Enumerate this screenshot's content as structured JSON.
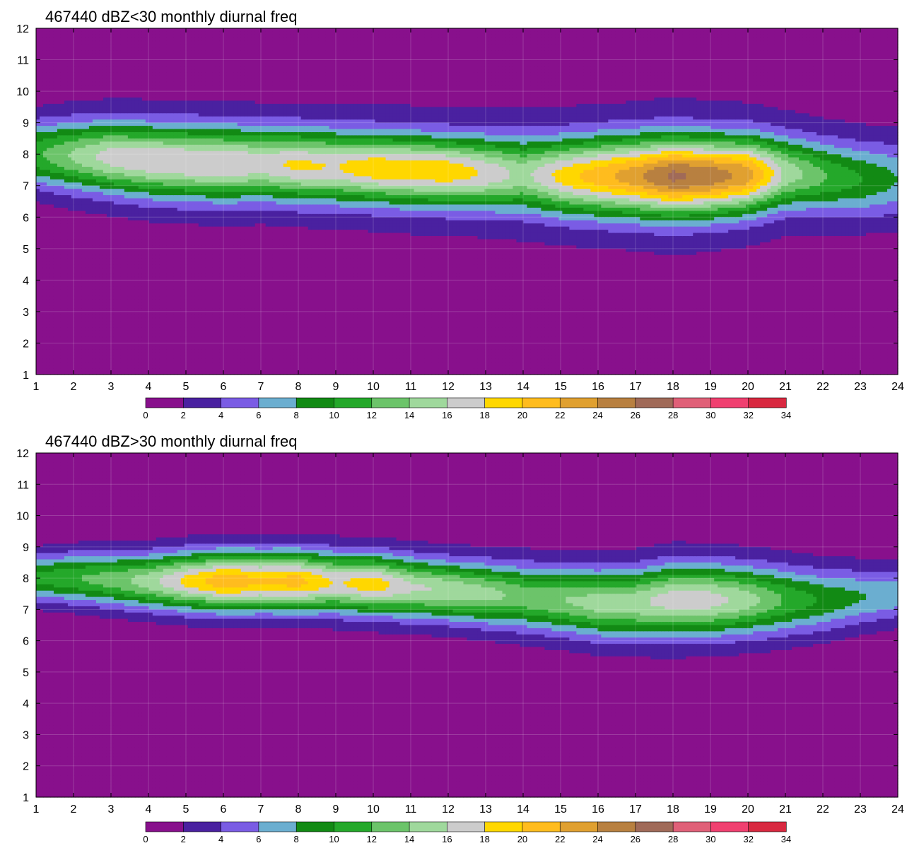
{
  "chart_data": [
    {
      "type": "heatmap",
      "title": "467440 dBZ<30 monthly diurnal freq",
      "xlabel": "",
      "ylabel": "",
      "xlim": [
        1,
        24
      ],
      "ylim": [
        1,
        12
      ],
      "x_ticks": [
        "1",
        "2",
        "3",
        "4",
        "5",
        "6",
        "7",
        "8",
        "9",
        "10",
        "11",
        "12",
        "13",
        "14",
        "15",
        "16",
        "17",
        "18",
        "19",
        "20",
        "21",
        "22",
        "23",
        "24"
      ],
      "y_ticks": [
        "1",
        "2",
        "3",
        "4",
        "5",
        "6",
        "7",
        "8",
        "9",
        "10",
        "11",
        "12"
      ],
      "colorbar": {
        "levels": [
          "0",
          "2",
          "4",
          "6",
          "8",
          "10",
          "12",
          "14",
          "16",
          "18",
          "20",
          "22",
          "24",
          "26",
          "28",
          "30",
          "32",
          "34"
        ],
        "colors": [
          "#88108c",
          "#4a21a0",
          "#7a5ce4",
          "#6baed0",
          "#128a14",
          "#24a82a",
          "#6cc46a",
          "#9fd89c",
          "#cccccc",
          "#ffd700",
          "#ffbc1e",
          "#e0a030",
          "#b88040",
          "#a06a58",
          "#e06078",
          "#f04070",
          "#d82840"
        ]
      },
      "profile": {
        "center_y": [
          8.0,
          7.95,
          7.9,
          7.8,
          7.75,
          7.7,
          7.7,
          7.65,
          7.6,
          7.55,
          7.5,
          7.45,
          7.4,
          7.35,
          7.3,
          7.3,
          7.3,
          7.3,
          7.3,
          7.35,
          7.4,
          7.3,
          7.2,
          7.2
        ],
        "peak": [
          10.5,
          13,
          15.5,
          16,
          16.3,
          16.2,
          15.5,
          16.5,
          16,
          17.5,
          17.5,
          17.5,
          15.5,
          13,
          16.5,
          19,
          21,
          24,
          23,
          21,
          13.5,
          10.5,
          8.5,
          6.5
        ],
        "band_width": [
          1.7,
          1.75,
          1.8,
          1.85,
          1.85,
          1.85,
          1.8,
          1.8,
          1.8,
          1.75,
          1.75,
          1.75,
          1.8,
          1.85,
          1.9,
          1.95,
          2.0,
          2.0,
          1.95,
          1.9,
          1.8,
          1.8,
          1.85,
          1.9
        ],
        "base": [
          1.0,
          1.4,
          1.5,
          1.6,
          1.7,
          1.8,
          1.8,
          1.9,
          1.9,
          2.0,
          2.1,
          2.0,
          2.1,
          2.2,
          2.2,
          2.2,
          2.2,
          2.5,
          2.3,
          2.2,
          2.0,
          1.8,
          1.6,
          1.5
        ],
        "base_width": [
          4.2,
          4.0,
          4.0,
          4.0,
          3.9,
          3.8,
          3.8,
          3.8,
          3.9,
          4.0,
          4.0,
          4.0,
          4.0,
          4.0,
          4.0,
          4.1,
          4.1,
          4.2,
          4.2,
          4.2,
          4.1,
          4.1,
          4.0,
          4.0
        ]
      }
    },
    {
      "type": "heatmap",
      "title": "467440 dBZ>30 monthly diurnal freq",
      "xlabel": "",
      "ylabel": "",
      "xlim": [
        1,
        24
      ],
      "ylim": [
        1,
        12
      ],
      "x_ticks": [
        "1",
        "2",
        "3",
        "4",
        "5",
        "6",
        "7",
        "8",
        "9",
        "10",
        "11",
        "12",
        "13",
        "14",
        "15",
        "16",
        "17",
        "18",
        "19",
        "20",
        "21",
        "22",
        "23",
        "24"
      ],
      "y_ticks": [
        "1",
        "2",
        "3",
        "4",
        "5",
        "6",
        "7",
        "8",
        "9",
        "10",
        "11",
        "12"
      ],
      "colorbar": {
        "levels": [
          "0",
          "2",
          "4",
          "6",
          "8",
          "10",
          "12",
          "14",
          "16",
          "18",
          "20",
          "22",
          "24",
          "26",
          "28",
          "30",
          "32",
          "34"
        ],
        "colors": [
          "#88108c",
          "#4a21a0",
          "#7a5ce4",
          "#6baed0",
          "#128a14",
          "#24a82a",
          "#6cc46a",
          "#9fd89c",
          "#cccccc",
          "#ffd700",
          "#ffbc1e",
          "#e0a030",
          "#b88040",
          "#a06a58",
          "#e06078",
          "#f04070",
          "#d82840"
        ]
      },
      "profile": {
        "center_y": [
          8.0,
          8.0,
          7.95,
          7.9,
          7.9,
          7.9,
          7.9,
          7.9,
          7.85,
          7.8,
          7.7,
          7.6,
          7.5,
          7.4,
          7.3,
          7.2,
          7.2,
          7.3,
          7.3,
          7.3,
          7.3,
          7.3,
          7.4,
          7.5
        ],
        "peak": [
          10,
          11,
          12,
          14,
          17.5,
          20,
          19,
          19.5,
          16.5,
          18,
          15,
          14.5,
          13.5,
          12,
          12.5,
          13.5,
          14,
          15.5,
          15.5,
          13.5,
          10.5,
          8.5,
          7,
          6.5
        ],
        "band_width": [
          1.25,
          1.3,
          1.35,
          1.4,
          1.45,
          1.5,
          1.5,
          1.5,
          1.5,
          1.5,
          1.5,
          1.5,
          1.55,
          1.6,
          1.65,
          1.7,
          1.75,
          1.8,
          1.8,
          1.75,
          1.7,
          1.6,
          1.5,
          1.4
        ],
        "base": [
          0.5,
          0.8,
          1.0,
          1.0,
          1.1,
          1.2,
          1.2,
          1.2,
          1.2,
          1.3,
          1.3,
          1.3,
          1.3,
          1.4,
          1.4,
          1.4,
          1.4,
          1.6,
          1.4,
          1.4,
          1.3,
          1.2,
          1.1,
          1.0
        ],
        "base_width": [
          3.3,
          3.3,
          3.3,
          3.3,
          3.3,
          3.3,
          3.3,
          3.3,
          3.3,
          3.3,
          3.3,
          3.3,
          3.4,
          3.4,
          3.5,
          3.5,
          3.5,
          3.6,
          3.6,
          3.6,
          3.5,
          3.5,
          3.4,
          3.4
        ]
      }
    }
  ]
}
